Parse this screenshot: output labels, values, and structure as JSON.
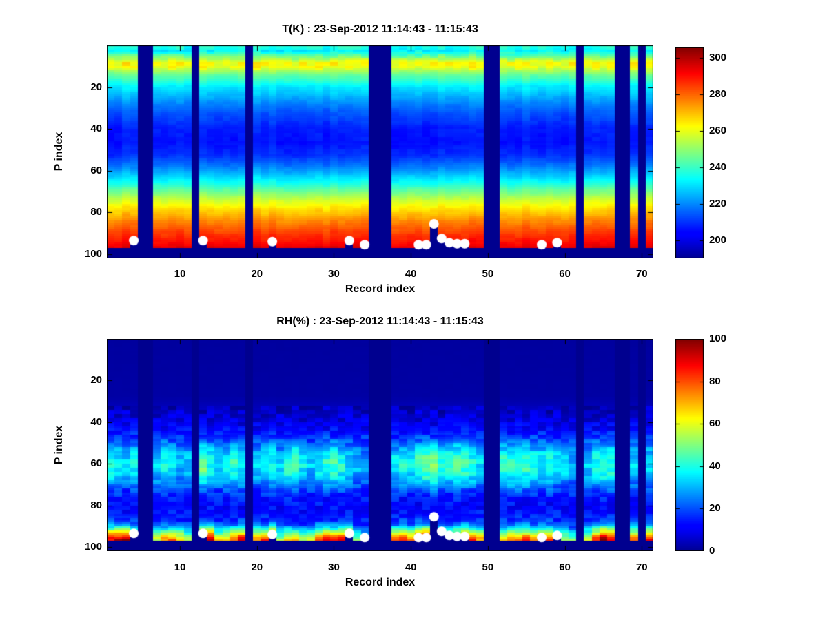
{
  "figure": {
    "background": "#ffffff",
    "text_color": "#000000"
  },
  "chart_data": [
    {
      "type": "heatmap",
      "id": "temperature",
      "title": "T(K) : 23-Sep-2012 11:14:43 - 11:15:43",
      "xlabel": "Record index",
      "ylabel": "P index",
      "x_ticks": [
        10,
        20,
        30,
        40,
        50,
        60,
        70
      ],
      "y_ticks": [
        20,
        40,
        60,
        80,
        100
      ],
      "x_range": [
        1,
        71
      ],
      "y_range": [
        1,
        100
      ],
      "y_axis_reversed": true,
      "grid": false,
      "colormap": "jet",
      "clim": [
        190,
        306
      ],
      "colorbar_ticks": [
        300,
        280,
        260,
        240,
        220,
        200
      ],
      "units": "K",
      "missing_records": [
        5,
        6,
        12,
        19,
        35,
        36,
        37,
        50,
        51,
        62,
        67,
        68,
        70
      ],
      "missing_bottom_rows_from": 98,
      "vertical_profile": [
        [
          1,
          237
        ],
        [
          3,
          233
        ],
        [
          5,
          242
        ],
        [
          7,
          252
        ],
        [
          9,
          263
        ],
        [
          11,
          261
        ],
        [
          13,
          252
        ],
        [
          15,
          245
        ],
        [
          17,
          240
        ],
        [
          20,
          232
        ],
        [
          24,
          226
        ],
        [
          28,
          220
        ],
        [
          33,
          214
        ],
        [
          40,
          208
        ],
        [
          47,
          206
        ],
        [
          53,
          210
        ],
        [
          58,
          218
        ],
        [
          63,
          228
        ],
        [
          67,
          237
        ],
        [
          71,
          248
        ],
        [
          75,
          258
        ],
        [
          79,
          266
        ],
        [
          83,
          273
        ],
        [
          87,
          280
        ],
        [
          91,
          286
        ],
        [
          95,
          291
        ],
        [
          97,
          294
        ]
      ],
      "noise": {
        "seed": 7,
        "split_row": 13,
        "amp_above": 4.2,
        "amp_below": 1.4,
        "record_offset": 1.6
      },
      "markers": {
        "color": "#ffffff",
        "points": [
          [
            4,
            93.5
          ],
          [
            13,
            93.5
          ],
          [
            22,
            94
          ],
          [
            32,
            93.5
          ],
          [
            34,
            95.5
          ],
          [
            41,
            95.5
          ],
          [
            42,
            95.5
          ],
          [
            43,
            85.5
          ],
          [
            44,
            92.5
          ],
          [
            45,
            94.5
          ],
          [
            46,
            95
          ],
          [
            47,
            95
          ],
          [
            57,
            95.5
          ],
          [
            59,
            94.5
          ]
        ]
      }
    },
    {
      "type": "heatmap",
      "id": "relative-humidity",
      "title": "RH(%) : 23-Sep-2012 11:14:43 - 11:15:43",
      "xlabel": "Record index",
      "ylabel": "P index",
      "x_ticks": [
        10,
        20,
        30,
        40,
        50,
        60,
        70
      ],
      "y_ticks": [
        20,
        40,
        60,
        80,
        100
      ],
      "x_range": [
        1,
        71
      ],
      "y_range": [
        1,
        100
      ],
      "y_axis_reversed": true,
      "grid": false,
      "colormap": "jet",
      "clim": [
        0,
        100
      ],
      "colorbar_ticks": [
        100,
        80,
        60,
        40,
        20,
        0
      ],
      "units": "%",
      "missing_records": [
        5,
        6,
        12,
        19,
        35,
        36,
        37,
        50,
        51,
        62,
        67,
        68,
        70
      ],
      "missing_bottom_rows_from": 98,
      "vertical_profile": [
        [
          1,
          1.5
        ],
        [
          28,
          2
        ],
        [
          33,
          4
        ],
        [
          38,
          7
        ],
        [
          43,
          11
        ],
        [
          48,
          18
        ],
        [
          53,
          27
        ],
        [
          57,
          34
        ],
        [
          61,
          37
        ],
        [
          65,
          34
        ],
        [
          69,
          28
        ],
        [
          73,
          20
        ],
        [
          77,
          14
        ],
        [
          81,
          12
        ],
        [
          85,
          14
        ],
        [
          88,
          20
        ],
        [
          90,
          30
        ],
        [
          92,
          48
        ],
        [
          94,
          68
        ],
        [
          96,
          85
        ],
        [
          97,
          90
        ]
      ],
      "record_mid_multiplier": [
        1.1,
        1.0,
        0.9,
        1.05,
        null,
        null,
        0.95,
        1.1,
        1.0,
        0.85,
        0.9,
        null,
        1.35,
        1.1,
        0.95,
        1.0,
        1.15,
        1.05,
        null,
        0.9,
        1.0,
        1.1,
        0.95,
        1.2,
        1.25,
        1.0,
        0.9,
        1.05,
        1.15,
        1.2,
        1.1,
        0.95,
        0.85,
        0.8,
        null,
        null,
        null,
        1.0,
        1.1,
        1.05,
        1.25,
        1.3,
        1.35,
        1.2,
        1.15,
        1.25,
        1.2,
        1.1,
        0.95,
        null,
        null,
        1.15,
        1.2,
        1.25,
        1.2,
        1.1,
        1.05,
        1.15,
        1.0,
        0.95,
        0.85,
        null,
        0.9,
        1.1,
        1.2,
        1.15,
        null,
        null,
        0.95,
        null,
        1.0
      ],
      "record_surface_multiplier": [
        1.0,
        1.05,
        1.1,
        0.85,
        null,
        null,
        0.65,
        0.8,
        0.85,
        0.75,
        0.6,
        null,
        1.0,
        1.05,
        0.7,
        0.75,
        0.85,
        1.0,
        null,
        0.8,
        0.9,
        1.05,
        0.6,
        0.7,
        0.75,
        0.65,
        0.7,
        0.85,
        0.95,
        0.9,
        1.0,
        1.05,
        0.55,
        0.45,
        null,
        null,
        null,
        0.85,
        0.9,
        0.8,
        1.05,
        1.1,
        0.35,
        0.9,
        0.75,
        0.85,
        1.0,
        0.95,
        0.8,
        null,
        null,
        0.75,
        0.8,
        0.85,
        0.9,
        0.8,
        0.85,
        0.9,
        0.7,
        0.6,
        0.55,
        null,
        0.7,
        0.95,
        1.1,
        1.0,
        null,
        null,
        0.85,
        null,
        0.95
      ],
      "noise": {
        "seed": 13,
        "split_row": 33,
        "amp_above": 0.6,
        "amp_below": 5.5,
        "record_offset": 0
      },
      "markers": {
        "color": "#ffffff",
        "points": [
          [
            4,
            93.5
          ],
          [
            13,
            93.5
          ],
          [
            22,
            94
          ],
          [
            32,
            93.5
          ],
          [
            34,
            95.5
          ],
          [
            41,
            95.5
          ],
          [
            42,
            95.5
          ],
          [
            43,
            85.5
          ],
          [
            44,
            92.5
          ],
          [
            45,
            94.5
          ],
          [
            46,
            95
          ],
          [
            47,
            95
          ],
          [
            57,
            95.5
          ],
          [
            59,
            94.5
          ]
        ]
      }
    }
  ]
}
